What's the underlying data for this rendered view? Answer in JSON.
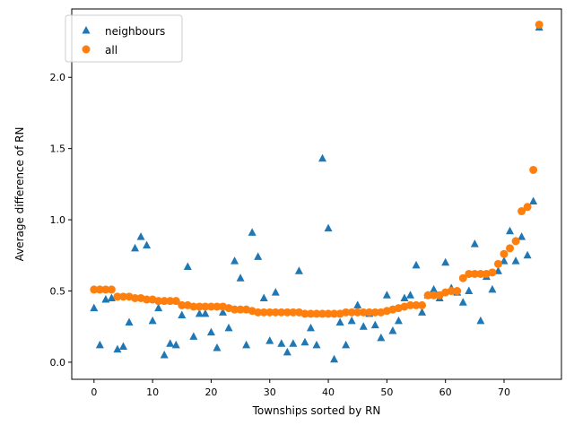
{
  "chart_data": {
    "type": "scatter",
    "title": "",
    "xlabel": "Townships sorted by RN",
    "ylabel": "Average difference of RN",
    "xlim": [
      -3.8,
      79.8
    ],
    "ylim": [
      -0.12,
      2.48
    ],
    "x_ticks": [
      0,
      10,
      20,
      30,
      40,
      50,
      60,
      70
    ],
    "y_ticks": [
      0.0,
      0.5,
      1.0,
      1.5,
      2.0
    ],
    "x_tick_labels": [
      "0",
      "10",
      "20",
      "30",
      "40",
      "50",
      "60",
      "70"
    ],
    "y_tick_labels": [
      "0.0",
      "0.5",
      "1.0",
      "1.5",
      "2.0"
    ],
    "grid": false,
    "legend_position": "top-left",
    "series": [
      {
        "name": "neighbours",
        "marker": "triangle",
        "color": "#1f77b4",
        "x": [
          0,
          1,
          2,
          3,
          4,
          5,
          6,
          7,
          8,
          9,
          10,
          11,
          12,
          13,
          14,
          15,
          16,
          17,
          18,
          19,
          20,
          21,
          22,
          23,
          24,
          25,
          26,
          27,
          28,
          29,
          30,
          31,
          32,
          33,
          34,
          35,
          36,
          37,
          38,
          39,
          40,
          41,
          42,
          43,
          44,
          45,
          46,
          47,
          48,
          49,
          50,
          51,
          52,
          53,
          54,
          55,
          56,
          57,
          58,
          59,
          60,
          61,
          62,
          63,
          64,
          65,
          66,
          67,
          68,
          69,
          70,
          71,
          72,
          73,
          74,
          75,
          76
        ],
        "y": [
          0.38,
          0.12,
          0.44,
          0.45,
          0.09,
          0.11,
          0.28,
          0.8,
          0.88,
          0.82,
          0.29,
          0.38,
          0.05,
          0.13,
          0.12,
          0.33,
          0.67,
          0.18,
          0.34,
          0.34,
          0.21,
          0.1,
          0.35,
          0.24,
          0.71,
          0.59,
          0.12,
          0.91,
          0.74,
          0.45,
          0.15,
          0.49,
          0.13,
          0.07,
          0.13,
          0.64,
          0.14,
          0.24,
          0.12,
          1.43,
          0.94,
          0.02,
          0.28,
          0.12,
          0.29,
          0.4,
          0.25,
          0.34,
          0.26,
          0.17,
          0.47,
          0.22,
          0.29,
          0.45,
          0.47,
          0.68,
          0.35,
          0.47,
          0.51,
          0.45,
          0.7,
          0.52,
          0.49,
          0.42,
          0.5,
          0.83,
          0.29,
          0.6,
          0.51,
          0.64,
          0.71,
          0.92,
          0.71,
          0.88,
          0.75,
          1.13,
          2.35
        ]
      },
      {
        "name": "all",
        "marker": "circle",
        "color": "#ff7f0e",
        "x": [
          0,
          1,
          2,
          3,
          4,
          5,
          6,
          7,
          8,
          9,
          10,
          11,
          12,
          13,
          14,
          15,
          16,
          17,
          18,
          19,
          20,
          21,
          22,
          23,
          24,
          25,
          26,
          27,
          28,
          29,
          30,
          31,
          32,
          33,
          34,
          35,
          36,
          37,
          38,
          39,
          40,
          41,
          42,
          43,
          44,
          45,
          46,
          47,
          48,
          49,
          50,
          51,
          52,
          53,
          54,
          55,
          56,
          57,
          58,
          59,
          60,
          61,
          62,
          63,
          64,
          65,
          66,
          67,
          68,
          69,
          70,
          71,
          72,
          73,
          74,
          75,
          76
        ],
        "y": [
          0.51,
          0.51,
          0.51,
          0.51,
          0.46,
          0.46,
          0.46,
          0.45,
          0.45,
          0.44,
          0.44,
          0.43,
          0.43,
          0.43,
          0.43,
          0.4,
          0.4,
          0.39,
          0.39,
          0.39,
          0.39,
          0.39,
          0.39,
          0.38,
          0.37,
          0.37,
          0.37,
          0.36,
          0.35,
          0.35,
          0.35,
          0.35,
          0.35,
          0.35,
          0.35,
          0.35,
          0.34,
          0.34,
          0.34,
          0.34,
          0.34,
          0.34,
          0.34,
          0.35,
          0.35,
          0.35,
          0.35,
          0.35,
          0.35,
          0.35,
          0.36,
          0.37,
          0.38,
          0.39,
          0.4,
          0.4,
          0.4,
          0.47,
          0.47,
          0.47,
          0.49,
          0.5,
          0.5,
          0.59,
          0.62,
          0.62,
          0.62,
          0.62,
          0.63,
          0.69,
          0.76,
          0.8,
          0.85,
          1.06,
          1.09,
          1.35,
          2.37
        ]
      }
    ]
  }
}
